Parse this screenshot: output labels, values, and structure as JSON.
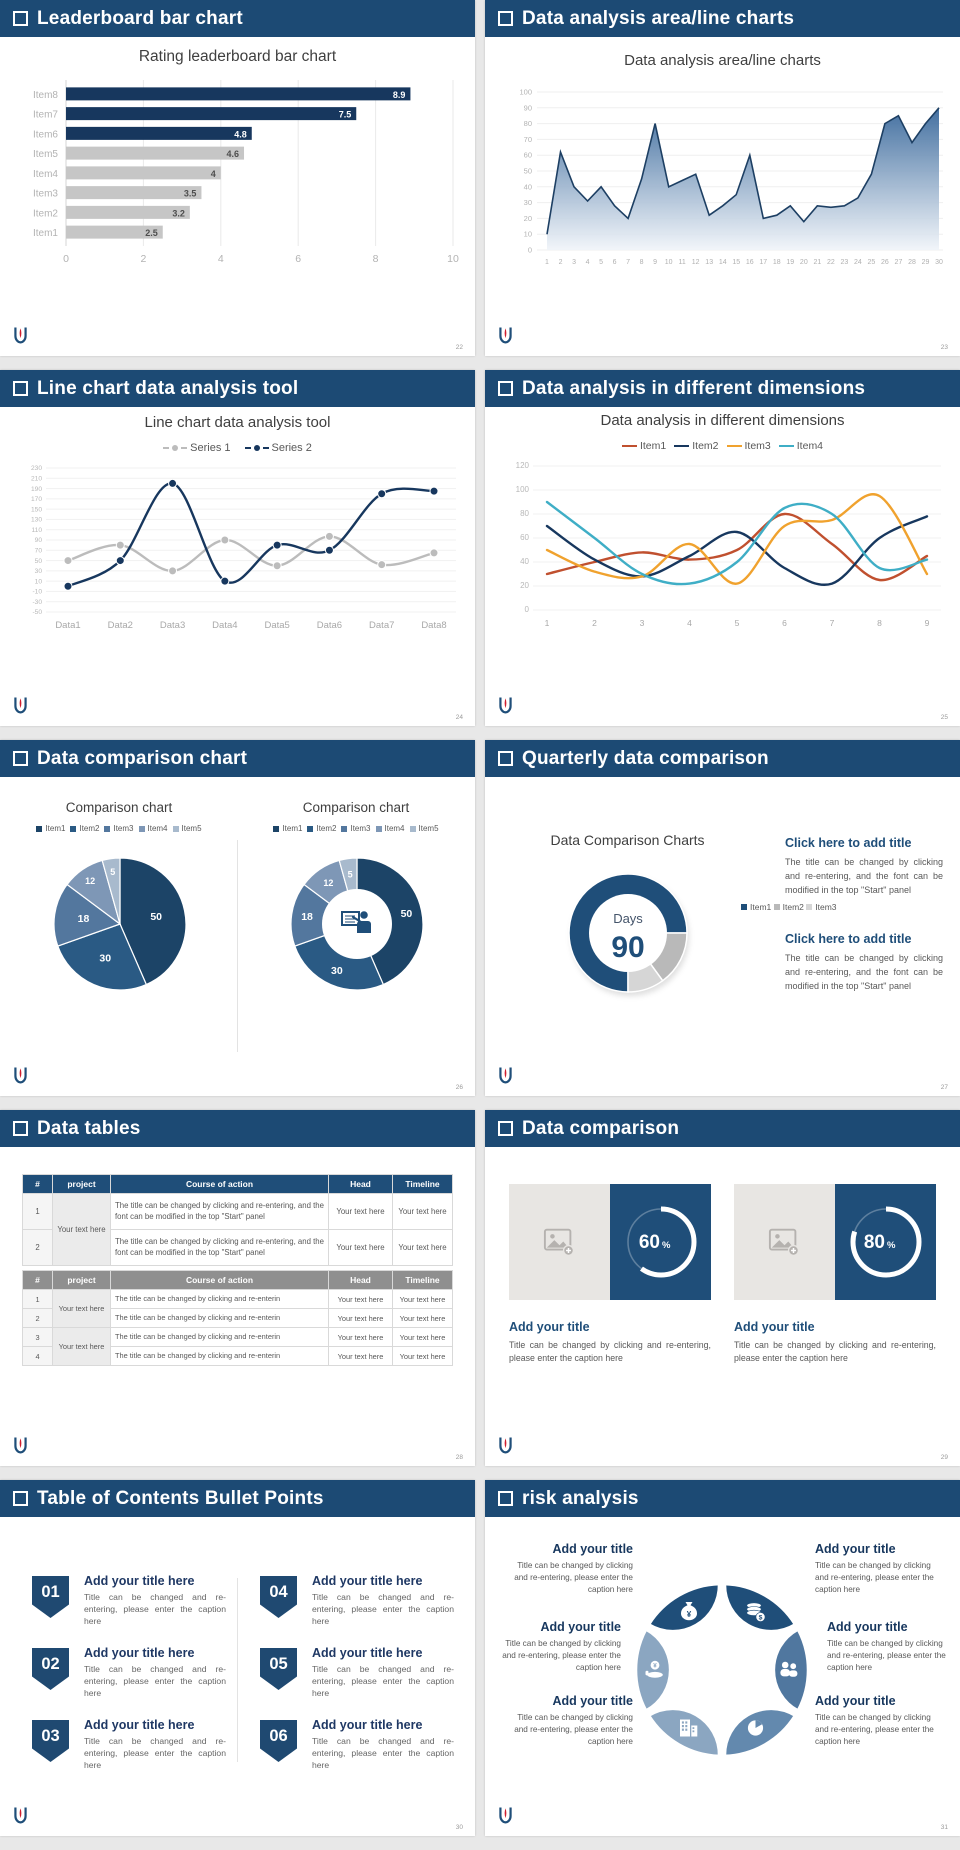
{
  "theme": {
    "header_navy": "#1c4a74",
    "dark_navy": "#17375e",
    "accent_navy": "#1f4e79",
    "bar_gray": "#c6c6c6",
    "page_bg": "#e8e8e8"
  },
  "slides": [
    {
      "header": "Leaderboard bar chart",
      "page": "22",
      "chart_data": {
        "type": "bar",
        "orientation": "horizontal",
        "title": "Rating leaderboard bar chart",
        "categories": [
          "Item1",
          "Item2",
          "Item3",
          "Item4",
          "Item5",
          "Item6",
          "Item7",
          "Item8"
        ],
        "values": [
          2.5,
          3.2,
          3.5,
          4,
          4.6,
          4.8,
          7.5,
          8.9
        ],
        "bar_colors": [
          "#c6c6c6",
          "#c6c6c6",
          "#c6c6c6",
          "#c6c6c6",
          "#c6c6c6",
          "#17375e",
          "#17375e",
          "#17375e"
        ],
        "xlim": [
          0,
          10
        ],
        "xticks": [
          0,
          2,
          4,
          6,
          8,
          10
        ],
        "grid": true
      }
    },
    {
      "header": "Data analysis area/line charts",
      "page": "23",
      "chart_data": {
        "type": "area",
        "title": "Data analysis area/line charts",
        "x": [
          1,
          2,
          3,
          4,
          5,
          6,
          7,
          8,
          9,
          10,
          11,
          12,
          13,
          14,
          15,
          16,
          17,
          18,
          19,
          20,
          21,
          22,
          23,
          24,
          25,
          26,
          27,
          28,
          29,
          30
        ],
        "values": [
          10,
          62,
          40,
          31,
          40,
          28,
          20,
          45,
          80,
          40,
          44,
          48,
          22,
          28,
          35,
          60,
          20,
          22,
          28,
          18,
          28,
          27,
          28,
          33,
          48,
          80,
          85,
          68,
          80,
          90
        ],
        "ylim": [
          0,
          100
        ],
        "ytick_step": 10,
        "line_color": "#1d3f63",
        "fill_gradient": [
          "#39689b",
          "#f0f4f9"
        ]
      }
    },
    {
      "header": "Line chart data analysis tool",
      "page": "24",
      "chart_data": {
        "type": "line",
        "title": "Line chart data analysis tool",
        "categories": [
          "Data1",
          "Data2",
          "Data3",
          "Data4",
          "Data5",
          "Data6",
          "Data7",
          "Data8"
        ],
        "ylim": [
          -50,
          230
        ],
        "ytick_step": 20,
        "smooth": true,
        "markers": true,
        "series": [
          {
            "name": "Series 1",
            "color": "#bcbcbc",
            "values": [
              50,
              80,
              30,
              90,
              40,
              97,
              42,
              65
            ]
          },
          {
            "name": "Series 2",
            "color": "#17375e",
            "values": [
              0,
              50,
              200,
              10,
              80,
              70,
              180,
              185
            ]
          }
        ]
      }
    },
    {
      "header": "Data analysis in different dimensions",
      "page": "25",
      "chart_data": {
        "type": "line",
        "title": "Data analysis in different dimensions",
        "x": [
          1,
          2,
          3,
          4,
          5,
          6,
          7,
          8,
          9
        ],
        "ylim": [
          0,
          120
        ],
        "ytick_step": 20,
        "smooth": true,
        "series": [
          {
            "name": "Item1",
            "color": "#c0502f",
            "values": [
              30,
              40,
              48,
              42,
              50,
              80,
              55,
              25,
              45
            ]
          },
          {
            "name": "Item2",
            "color": "#17375e",
            "values": [
              70,
              42,
              28,
              45,
              65,
              35,
              22,
              60,
              78
            ]
          },
          {
            "name": "Item3",
            "color": "#f0a22e",
            "values": [
              50,
              32,
              28,
              55,
              22,
              70,
              75,
              95,
              30
            ]
          },
          {
            "name": "Item4",
            "color": "#3faec6",
            "values": [
              90,
              60,
              30,
              22,
              40,
              85,
              80,
              35,
              42
            ]
          }
        ]
      }
    },
    {
      "header": "Data comparison chart",
      "page": "26",
      "chart_data": [
        {
          "type": "pie",
          "title": "Comparison chart",
          "labels": [
            "Item1",
            "Item2",
            "Item3",
            "Item4",
            "Item5"
          ],
          "values": [
            50,
            30,
            18,
            12,
            5
          ],
          "colors": [
            "#1c4467",
            "#2a5a84",
            "#53779e",
            "#7e97b6",
            "#a8bacd"
          ]
        },
        {
          "type": "donut",
          "title": "Comparison chart",
          "labels": [
            "Item1",
            "Item2",
            "Item3",
            "Item4",
            "Item5"
          ],
          "values": [
            50,
            30,
            18,
            12,
            5
          ],
          "colors": [
            "#1c4467",
            "#2a5a84",
            "#53779e",
            "#7e97b6",
            "#a8bacd"
          ],
          "center_icon": "presenter"
        }
      ]
    },
    {
      "header": "Quarterly data comparison",
      "page": "27",
      "chart_data": {
        "type": "donut",
        "title": "Data Comparison Charts",
        "labels": [
          "Item1",
          "Item2",
          "Item3"
        ],
        "values": [
          75,
          15,
          10
        ],
        "colors": [
          "#1f4e79",
          "#b9b9b9",
          "#d6d6d6"
        ],
        "center_label": "Days",
        "center_value": "90"
      },
      "blocks": [
        {
          "title": "Click here to add title",
          "body": "The title can be changed by clicking and re-entering, and the font can be modified in the top \"Start\" panel"
        },
        {
          "title": "Click here to add title",
          "body": "The title can be changed by clicking and re-entering, and the font can be modified in the top \"Start\" panel"
        }
      ]
    },
    {
      "header": "Data tables",
      "page": "28",
      "table1": {
        "headers": [
          "#",
          "project",
          "Course of action",
          "Head",
          "Timeline"
        ],
        "project": "Your text here",
        "rows": [
          {
            "num": "1",
            "course": "The title can be changed by clicking and re-entering, and the font can be modified in the top \"Start\" panel",
            "head": "Your text here",
            "timeline": "Your text here"
          },
          {
            "num": "2",
            "course": "The title can be changed by clicking and re-entering, and the font can be modified in the top \"Start\" panel",
            "head": "Your text here",
            "timeline": "Your text here"
          }
        ]
      },
      "table2": {
        "headers": [
          "#",
          "project",
          "Course of action",
          "Head",
          "Timeline"
        ],
        "projects": [
          "Your text here",
          "Your text here"
        ],
        "rows": [
          {
            "num": "1",
            "course": "The title can be changed by clicking and re-enterin",
            "head": "Your text here",
            "timeline": "Your text here"
          },
          {
            "num": "2",
            "course": "The title can be changed by clicking and re-enterin",
            "head": "Your text here",
            "timeline": "Your text here"
          },
          {
            "num": "3",
            "course": "The title can be changed by clicking and re-enterin",
            "head": "Your text here",
            "timeline": "Your text here"
          },
          {
            "num": "4",
            "course": "The title can be changed by clicking and re-enterin",
            "head": "Your text here",
            "timeline": "Your text here"
          }
        ]
      }
    },
    {
      "header": "Data comparison",
      "page": "29",
      "cards": [
        {
          "percent": "60",
          "title": "Add your title",
          "caption": "Title can be changed by clicking and re-entering, please enter the caption here"
        },
        {
          "percent": "80",
          "title": "Add your title",
          "caption": "Title can be changed by clicking and re-entering, please enter the caption here"
        }
      ]
    },
    {
      "header": "Table of Contents Bullet Points",
      "page": "30",
      "items": [
        {
          "num": "01",
          "title": "Add your title here",
          "caption": "Title can be changed and re-entering, please enter the caption here"
        },
        {
          "num": "02",
          "title": "Add your title here",
          "caption": "Title can be changed and re-entering, please enter the caption here"
        },
        {
          "num": "03",
          "title": "Add your title here",
          "caption": "Title can be changed and re-entering, please enter the caption here"
        },
        {
          "num": "04",
          "title": "Add your title here",
          "caption": "Title can be changed and re-entering, please enter the caption here"
        },
        {
          "num": "05",
          "title": "Add your title here",
          "caption": "Title can be changed and re-entering, please enter the caption here"
        },
        {
          "num": "06",
          "title": "Add your title here",
          "caption": "Title can be changed and re-entering, please enter the caption here"
        }
      ]
    },
    {
      "header": "risk analysis",
      "page": "31",
      "wheel": {
        "colors": [
          "#1f4e79",
          "#1f4e79",
          "#50779f",
          "#6389ae",
          "#8ba6c1",
          "#8ba6c1"
        ],
        "icons": [
          "money-bag",
          "coins",
          "people",
          "pie",
          "building",
          "hand-coin"
        ]
      },
      "blocks": [
        {
          "title": "Add your title",
          "caption": "Title can be changed by clicking and re-entering, please enter the caption here"
        },
        {
          "title": "Add your title",
          "caption": "Title can be changed by clicking and re-entering, please enter the caption here"
        },
        {
          "title": "Add your title",
          "caption": "Title can be changed by clicking and re-entering, please enter the caption here"
        },
        {
          "title": "Add your title",
          "caption": "Title can be changed by clicking and re-entering, please enter the caption here"
        },
        {
          "title": "Add your title",
          "caption": "Title can be changed by clicking and re-entering, please enter the caption here"
        },
        {
          "title": "Add your title",
          "caption": "Title can be changed by clicking and re-entering, please enter the caption here"
        }
      ]
    }
  ]
}
